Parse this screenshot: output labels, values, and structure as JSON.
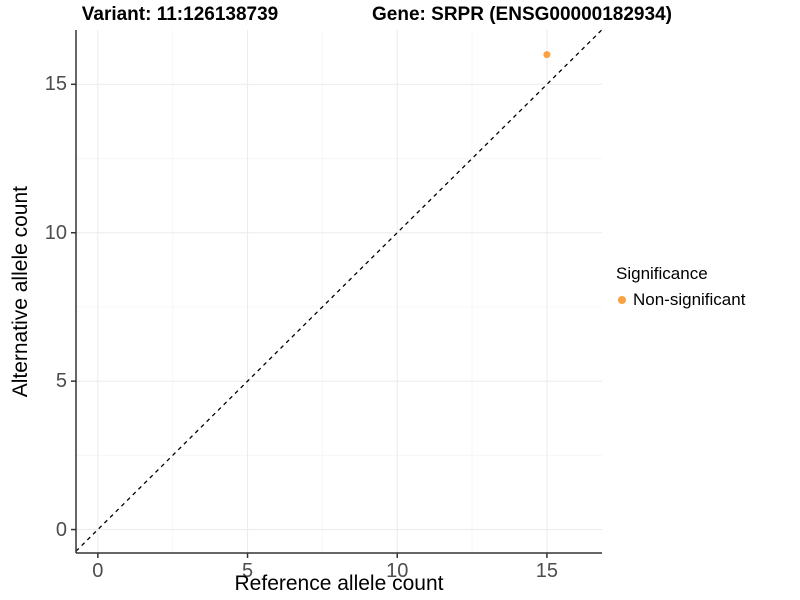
{
  "chart_data": {
    "type": "scatter",
    "title_left": "Variant: 11:126138739",
    "title_right": "Gene: SRPR (ENSG00000182934)",
    "xlabel": "Reference allele count",
    "ylabel": "Alternative allele count",
    "x_ticks": [
      0,
      5,
      10,
      15
    ],
    "y_ticks": [
      0,
      5,
      10,
      15
    ],
    "x_minor_ticks": [
      2.5,
      7.5,
      12.5
    ],
    "y_minor_ticks": [
      2.5,
      7.5,
      12.5
    ],
    "xlim": [
      -0.73,
      16.84
    ],
    "ylim": [
      -0.79,
      16.83
    ],
    "grid": true,
    "identity_line": {
      "style": "dashed",
      "slope": 1,
      "intercept": 0,
      "color": "#000000"
    },
    "series": [
      {
        "name": "Non-significant",
        "color": "#F9A242",
        "points": [
          {
            "x": 15,
            "y": 16
          }
        ]
      }
    ],
    "legend": {
      "title": "Significance",
      "position": "right",
      "items": [
        {
          "label": "Non-significant",
          "color": "#F9A242",
          "marker": "dot-icon"
        }
      ]
    },
    "colors": {
      "axis_line": "#333333",
      "tick_text": "#4D4D4D",
      "grid_major": "#EBEBEB",
      "grid_minor": "#F6F6F6",
      "background": "#FFFFFF"
    }
  }
}
